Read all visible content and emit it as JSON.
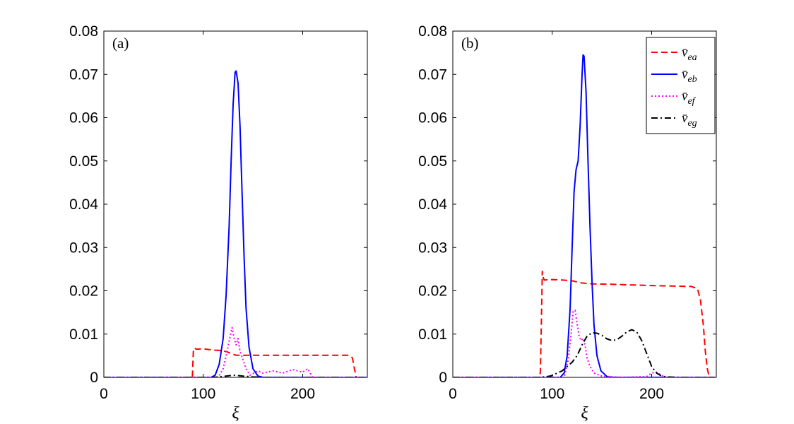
{
  "chart_data": [
    {
      "type": "line",
      "panel_label": "(a)",
      "xlabel": "ξ",
      "ylabel": "",
      "xlim": [
        0,
        265
      ],
      "ylim": [
        0,
        0.08
      ],
      "xticks": [
        0,
        100,
        200
      ],
      "xtick_labels": [
        "0",
        "100",
        "200"
      ],
      "yticks": [
        0,
        0.01,
        0.02,
        0.03,
        0.04,
        0.05,
        0.06,
        0.07,
        0.08
      ],
      "ytick_labels": [
        "0",
        "0.01",
        "0.02",
        "0.03",
        "0.04",
        "0.05",
        "0.06",
        "0.07",
        "0.08"
      ],
      "grid": false,
      "series": [
        {
          "key": "vea",
          "color": "#ff0000",
          "dash": "9,5",
          "points": [
            [
              0,
              0
            ],
            [
              89,
              0
            ],
            [
              90,
              0.006
            ],
            [
              91,
              0.0068
            ],
            [
              93,
              0.0065
            ],
            [
              100,
              0.0066
            ],
            [
              110,
              0.0063
            ],
            [
              118,
              0.0062
            ],
            [
              124,
              0.0059
            ],
            [
              128,
              0.0055
            ],
            [
              133,
              0.0051
            ],
            [
              150,
              0.0051
            ],
            [
              200,
              0.0051
            ],
            [
              246,
              0.0051
            ],
            [
              250,
              0.0045
            ],
            [
              252,
              0.002
            ],
            [
              254,
              0
            ],
            [
              265,
              0
            ]
          ]
        },
        {
          "key": "veb",
          "color": "#0000ff",
          "dash": "",
          "points": [
            [
              0,
              0
            ],
            [
              108,
              0
            ],
            [
              112,
              0.0005
            ],
            [
              116,
              0.003
            ],
            [
              120,
              0.009
            ],
            [
              123,
              0.019
            ],
            [
              126,
              0.035
            ],
            [
              128,
              0.05
            ],
            [
              130,
              0.063
            ],
            [
              132,
              0.0705
            ],
            [
              133,
              0.0708
            ],
            [
              135,
              0.068
            ],
            [
              137,
              0.058
            ],
            [
              139,
              0.043
            ],
            [
              141,
              0.028
            ],
            [
              143,
              0.016
            ],
            [
              146,
              0.007
            ],
            [
              150,
              0.002
            ],
            [
              155,
              0.0003
            ],
            [
              160,
              0
            ],
            [
              265,
              0
            ]
          ]
        },
        {
          "key": "vef",
          "color": "#ff00ff",
          "dash": "2,3",
          "points": [
            [
              0,
              0
            ],
            [
              115,
              0
            ],
            [
              120,
              0.002
            ],
            [
              124,
              0.006
            ],
            [
              127,
              0.0095
            ],
            [
              129,
              0.0115
            ],
            [
              131,
              0.009
            ],
            [
              133,
              0.0075
            ],
            [
              135,
              0.009
            ],
            [
              137,
              0.006
            ],
            [
              140,
              0.004
            ],
            [
              143,
              0.002
            ],
            [
              147,
              0.0005
            ],
            [
              155,
              0.0015
            ],
            [
              160,
              0.001
            ],
            [
              170,
              0.0015
            ],
            [
              180,
              0.001
            ],
            [
              190,
              0.0018
            ],
            [
              200,
              0.0012
            ],
            [
              205,
              0.002
            ],
            [
              210,
              0
            ],
            [
              265,
              0
            ]
          ]
        },
        {
          "key": "veg",
          "color": "#000000",
          "dash": "9,4,2,4",
          "points": [
            [
              0,
              0
            ],
            [
              110,
              0
            ],
            [
              120,
              0.0002
            ],
            [
              130,
              0.0005
            ],
            [
              140,
              0.0003
            ],
            [
              150,
              0.0001
            ],
            [
              160,
              0
            ],
            [
              265,
              0
            ]
          ]
        }
      ]
    },
    {
      "type": "line",
      "panel_label": "(b)",
      "xlabel": "ξ",
      "ylabel": "",
      "xlim": [
        0,
        265
      ],
      "ylim": [
        0,
        0.08
      ],
      "xticks": [
        0,
        100,
        200
      ],
      "xtick_labels": [
        "0",
        "100",
        "200"
      ],
      "yticks": [
        0,
        0.01,
        0.02,
        0.03,
        0.04,
        0.05,
        0.06,
        0.07,
        0.08
      ],
      "ytick_labels": [
        "0",
        "0.01",
        "0.02",
        "0.03",
        "0.04",
        "0.05",
        "0.06",
        "0.07",
        "0.08"
      ],
      "grid": false,
      "legend_position": "top-right",
      "series": [
        {
          "key": "vea",
          "color": "#ff0000",
          "dash": "9,5",
          "points": [
            [
              0,
              0
            ],
            [
              86,
              0
            ],
            [
              88,
              0.001
            ],
            [
              89,
              0.012
            ],
            [
              90,
              0.0245
            ],
            [
              91,
              0.023
            ],
            [
              92,
              0.0225
            ],
            [
              100,
              0.0226
            ],
            [
              110,
              0.0225
            ],
            [
              120,
              0.0223
            ],
            [
              130,
              0.0218
            ],
            [
              140,
              0.0216
            ],
            [
              160,
              0.0215
            ],
            [
              200,
              0.0212
            ],
            [
              240,
              0.021
            ],
            [
              246,
              0.0205
            ],
            [
              249,
              0.018
            ],
            [
              252,
              0.012
            ],
            [
              254,
              0.006
            ],
            [
              256,
              0.002
            ],
            [
              258,
              0
            ],
            [
              265,
              0
            ]
          ]
        },
        {
          "key": "veb",
          "color": "#0000ff",
          "dash": "",
          "points": [
            [
              0,
              0
            ],
            [
              108,
              0
            ],
            [
              112,
              0.001
            ],
            [
              115,
              0.005
            ],
            [
              118,
              0.016
            ],
            [
              120,
              0.03
            ],
            [
              122,
              0.043
            ],
            [
              124,
              0.048
            ],
            [
              126,
              0.05
            ],
            [
              128,
              0.058
            ],
            [
              130,
              0.07
            ],
            [
              131,
              0.0745
            ],
            [
              132,
              0.0742
            ],
            [
              134,
              0.066
            ],
            [
              136,
              0.05
            ],
            [
              138,
              0.035
            ],
            [
              140,
              0.022
            ],
            [
              142,
              0.012
            ],
            [
              145,
              0.005
            ],
            [
              149,
              0.0015
            ],
            [
              155,
              0.0002
            ],
            [
              160,
              0
            ],
            [
              265,
              0
            ]
          ]
        },
        {
          "key": "vef",
          "color": "#ff00ff",
          "dash": "2,3",
          "points": [
            [
              0,
              0
            ],
            [
              112,
              0
            ],
            [
              116,
              0.004
            ],
            [
              119,
              0.01
            ],
            [
              121,
              0.0152
            ],
            [
              123,
              0.0155
            ],
            [
              125,
              0.0125
            ],
            [
              127,
              0.0095
            ],
            [
              129,
              0.0085
            ],
            [
              131,
              0.009
            ],
            [
              133,
              0.0075
            ],
            [
              135,
              0.0045
            ],
            [
              138,
              0.0025
            ],
            [
              142,
              0.001
            ],
            [
              150,
              0.0003
            ],
            [
              170,
              0
            ],
            [
              195,
              0.0002
            ],
            [
              200,
              0.001
            ],
            [
              205,
              0.0012
            ],
            [
              210,
              0.0004
            ],
            [
              215,
              0
            ],
            [
              265,
              0
            ]
          ]
        },
        {
          "key": "veg",
          "color": "#000000",
          "dash": "9,4,2,4",
          "points": [
            [
              0,
              0
            ],
            [
              88,
              0
            ],
            [
              95,
              0.0002
            ],
            [
              100,
              0.0004
            ],
            [
              105,
              0.001
            ],
            [
              110,
              0.0015
            ],
            [
              115,
              0.0025
            ],
            [
              120,
              0.0035
            ],
            [
              125,
              0.005
            ],
            [
              130,
              0.0075
            ],
            [
              135,
              0.0095
            ],
            [
              140,
              0.0103
            ],
            [
              145,
              0.0102
            ],
            [
              150,
              0.0097
            ],
            [
              155,
              0.0089
            ],
            [
              160,
              0.0085
            ],
            [
              165,
              0.0087
            ],
            [
              170,
              0.0095
            ],
            [
              175,
              0.0105
            ],
            [
              180,
              0.011
            ],
            [
              185,
              0.0105
            ],
            [
              190,
              0.0085
            ],
            [
              195,
              0.0055
            ],
            [
              200,
              0.0025
            ],
            [
              205,
              0.001
            ],
            [
              210,
              0.0003
            ],
            [
              215,
              0.0001
            ],
            [
              230,
              0
            ],
            [
              265,
              0
            ]
          ]
        }
      ]
    }
  ],
  "legend": {
    "panel": 1,
    "entries": [
      {
        "key": "vea",
        "label": "v̄",
        "sub": "ea"
      },
      {
        "key": "veb",
        "label": "v̄",
        "sub": "eb"
      },
      {
        "key": "vef",
        "label": "v̄",
        "sub": "ef"
      },
      {
        "key": "veg",
        "label": "v̄",
        "sub": "eg"
      }
    ]
  }
}
